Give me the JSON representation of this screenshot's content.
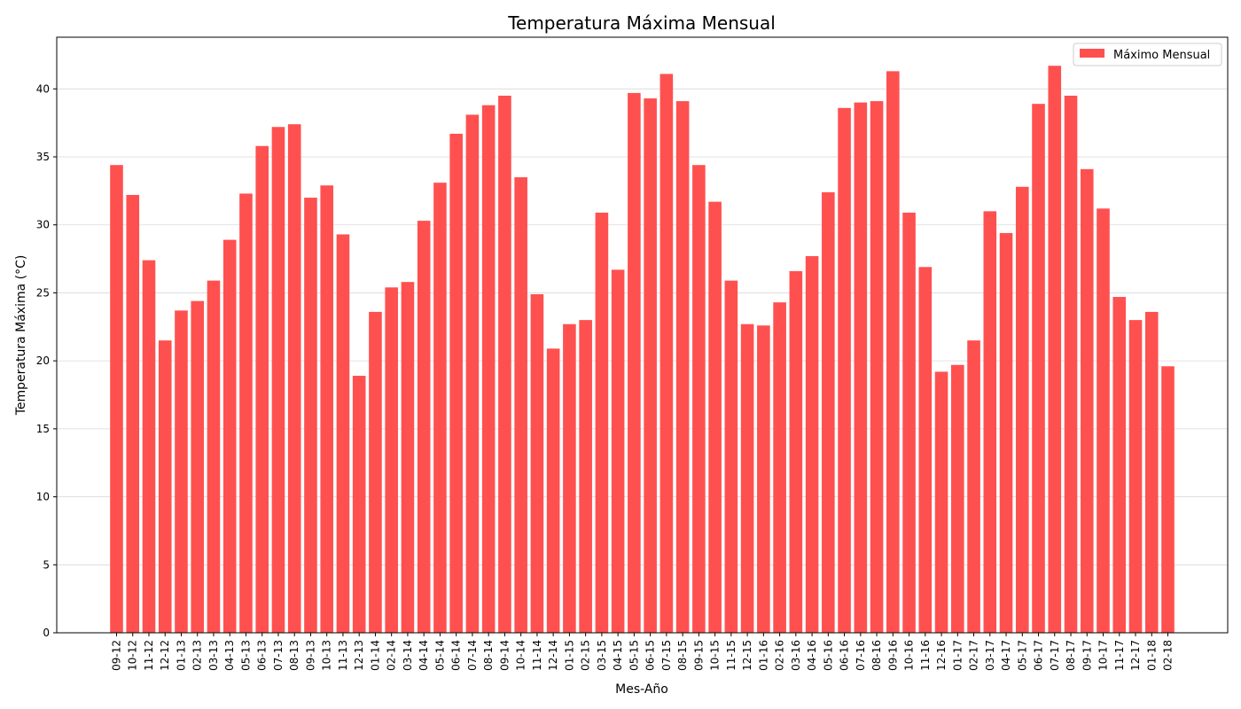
{
  "chart_data": {
    "type": "bar",
    "title": "Temperatura Máxima Mensual",
    "xlabel": "Mes-Año",
    "ylabel": "Temperatura Máxima (°C)",
    "ylim": [
      0,
      43.8
    ],
    "yticks": [
      0,
      5,
      10,
      15,
      20,
      25,
      30,
      35,
      40
    ],
    "grid": "horizontal",
    "legend_position": "top-right",
    "color": "#ff5050",
    "categories": [
      "09-12",
      "10-12",
      "11-12",
      "12-12",
      "01-13",
      "02-13",
      "03-13",
      "04-13",
      "05-13",
      "06-13",
      "07-13",
      "08-13",
      "09-13",
      "10-13",
      "11-13",
      "12-13",
      "01-14",
      "02-14",
      "03-14",
      "04-14",
      "05-14",
      "06-14",
      "07-14",
      "08-14",
      "09-14",
      "10-14",
      "11-14",
      "12-14",
      "01-15",
      "02-15",
      "03-15",
      "04-15",
      "05-15",
      "06-15",
      "07-15",
      "08-15",
      "09-15",
      "10-15",
      "11-15",
      "12-15",
      "01-16",
      "02-16",
      "03-16",
      "04-16",
      "05-16",
      "06-16",
      "07-16",
      "08-16",
      "09-16",
      "10-16",
      "11-16",
      "12-16",
      "01-17",
      "02-17",
      "03-17",
      "04-17",
      "05-17",
      "06-17",
      "07-17",
      "08-17",
      "09-17",
      "10-17",
      "11-17",
      "12-17",
      "01-18",
      "02-18"
    ],
    "series": [
      {
        "name": "Máximo Mensual",
        "values": [
          34.4,
          32.2,
          27.4,
          21.5,
          23.7,
          24.4,
          25.9,
          28.9,
          32.3,
          35.8,
          37.2,
          37.4,
          32.0,
          32.9,
          29.3,
          18.9,
          23.6,
          25.4,
          25.8,
          30.3,
          33.1,
          36.7,
          38.1,
          38.8,
          39.5,
          33.5,
          24.9,
          20.9,
          22.7,
          23.0,
          30.9,
          26.7,
          39.7,
          39.3,
          41.1,
          39.1,
          34.4,
          31.7,
          25.9,
          22.7,
          22.6,
          24.3,
          26.6,
          27.7,
          32.4,
          38.6,
          39.0,
          39.1,
          41.3,
          30.9,
          26.9,
          19.2,
          19.7,
          21.5,
          31.0,
          29.4,
          32.8,
          38.9,
          41.7,
          39.5,
          34.1,
          31.2,
          24.7,
          23.0,
          23.6,
          19.6
        ]
      }
    ]
  }
}
